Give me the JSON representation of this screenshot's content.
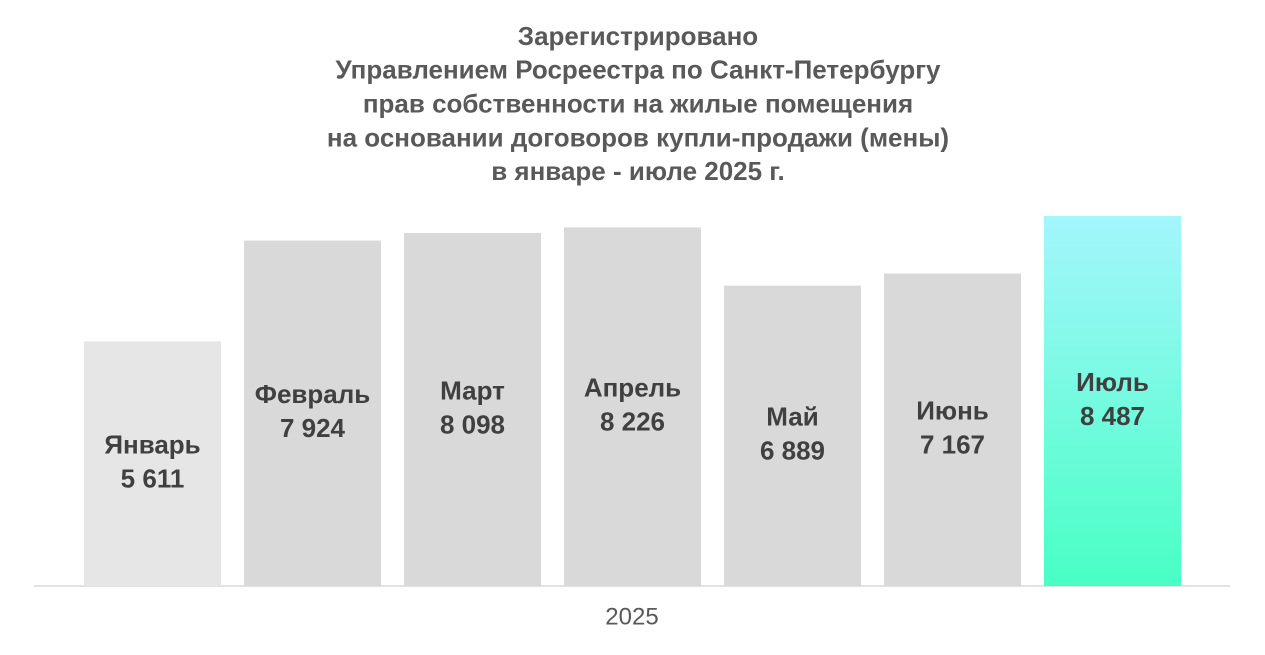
{
  "chart_data": {
    "type": "bar",
    "title": [
      "Зарегистрировано",
      "Управлением Росреестра по Санкт-Петербургу",
      "прав собственности на жилые помещения",
      "на основании договоров купли-продажи (мены)",
      "в январе - июле 2025 г."
    ],
    "x_label": "2025",
    "categories": [
      "Январь",
      "Февраль",
      "Март",
      "Апрель",
      "Май",
      "Июнь",
      "Июль"
    ],
    "values": [
      5611,
      7924,
      8098,
      8226,
      6889,
      7167,
      8487
    ],
    "value_labels": [
      "5 611",
      "7 924",
      "8 098",
      "8 226",
      "6 889",
      "7 167",
      "8 487"
    ],
    "colors": [
      "#e6e6e6",
      "#d9d9d9",
      "#d9d9d9",
      "#d9d9d9",
      "#d9d9d9",
      "#d9d9d9",
      [
        "#a3f6fc",
        "#48ffc4"
      ]
    ]
  }
}
